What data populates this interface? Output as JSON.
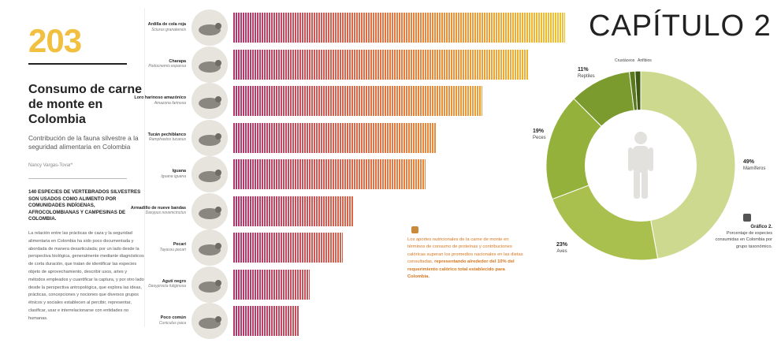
{
  "page_number": "203",
  "chapter": "CAPÍTULO 2",
  "article": {
    "title": "Consumo de carne de monte en Colombia",
    "subtitle": "Contribución de la fauna silvestre a la seguridad alimentaria en Colombia",
    "author": "Nancy Vargas-Tovar*",
    "lead": "140 especies de vertebrados silvestres son usados como alimento por comunidades indígenas, afrocolombianas y campesinas de Colombia.",
    "body": "La relación entre las prácticas de caza y la seguridad alimentaria en Colombia ha sido poco documentada y abordada de manera desarticulada; por un lado desde la perspectiva biológica, generalmente mediante diagnósticos de corta duración, que tratan de identificar las especies objeto de aprovechamiento, describir usos, artes y métodos empleados y cuantificar la captura, y por otro lado desde la perspectiva antropológica, que explora las ideas, prácticas, concepciones y nociones que diversos grupos étnicos y sociales establecen al percibir, representar, clasificar, usar e interrelacionarse con entidades no humanas."
  },
  "species": [
    {
      "name": "Ardilla de cola roja",
      "sci": "Sciurus granatensis",
      "icon": "squirrel-icon",
      "value": 1.0
    },
    {
      "name": "Charapa",
      "sci": "Podocnemis expansa",
      "icon": "turtle-icon",
      "value": 0.89
    },
    {
      "name": "Loro harinoso amazónico",
      "sci": "Amazona farinosa",
      "icon": "parrot-icon",
      "value": 0.75
    },
    {
      "name": "Tucán pechiblanco",
      "sci": "Ramphastos tucanus",
      "icon": "toucan-icon",
      "value": 0.61
    },
    {
      "name": "Iguana",
      "sci": "Iguana iguana",
      "icon": "iguana-icon",
      "value": 0.58
    },
    {
      "name": "Armadillo de nueve bandas",
      "sci": "Dasypus novemcinctus",
      "icon": "armadillo-icon",
      "value": 0.36
    },
    {
      "name": "Pecarí",
      "sci": "Tayassu pecari",
      "icon": "peccary-icon",
      "value": 0.33
    },
    {
      "name": "Agutí negro",
      "sci": "Dasyprocta fuliginosa",
      "icon": "agouti-icon",
      "value": 0.23
    },
    {
      "name": "Poco común",
      "sci": "Cuniculus paca",
      "icon": "paca-icon",
      "value": 0.2
    }
  ],
  "note": {
    "text": "Los aportes nutricionales de la carne de monte en términos de consumo de proteínas y contribuciones calóricas superan los promedios nacionales en las dietas consultadas, ",
    "strong": "representando alrededor del 10% del requerimiento calórico total establecido para Colombia."
  },
  "graphic": {
    "title": "Gráfico 2.",
    "caption": "Porcentaje de especies consumidas en Colombia por grupo taxonómico."
  },
  "chart_data": {
    "type": "pie",
    "categories": [
      "Mamíferos",
      "Aves",
      "Peces",
      "Reptiles",
      "Crustáceos",
      "Anfibios"
    ],
    "values": [
      49,
      23,
      19,
      11,
      1,
      1
    ],
    "labels": [
      "49%",
      "23%",
      "19%",
      "11%",
      "",
      ""
    ],
    "colors": [
      "#cdd98f",
      "#a9c04f",
      "#94b23b",
      "#7b9b2e",
      "#5b7a1f",
      "#3e5a12"
    ]
  }
}
